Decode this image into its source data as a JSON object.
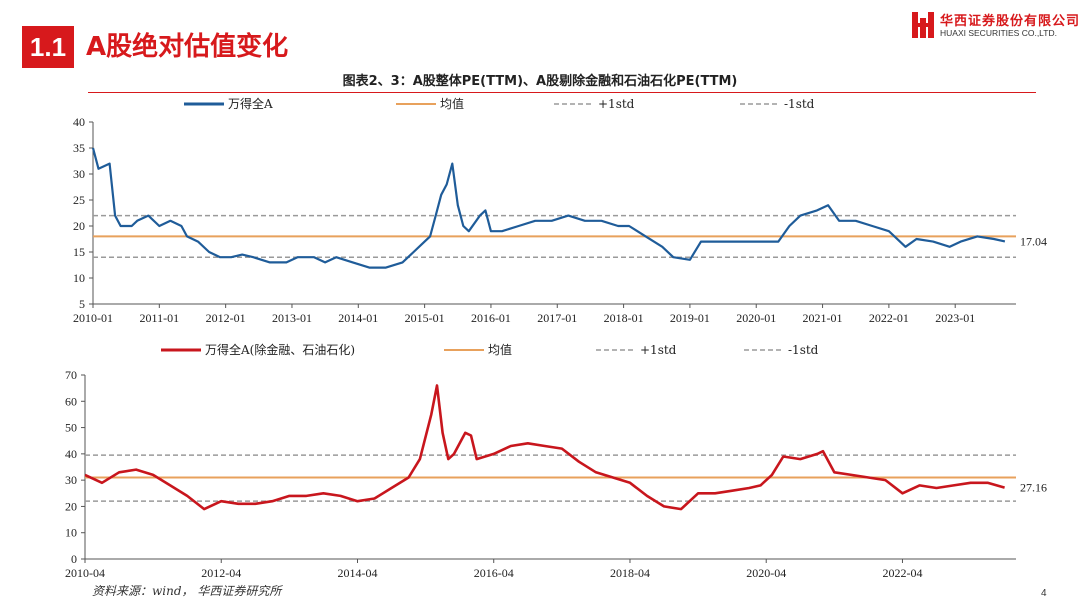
{
  "header": {
    "section_number": "1.1",
    "section_title": "A股绝对估值变化",
    "logo_cn": "华西证券股份有限公司",
    "logo_en": "HUAXI SECURITIES CO.,LTD."
  },
  "figure_title": "图表2、3：A股整体PE(TTM)、A股剔除金融和石油石化PE(TTM)",
  "footer": {
    "source": "资料来源：wind， 华西证券研究所",
    "page": "4"
  },
  "colors": {
    "brand_red": "#d7191c",
    "series_blue": "#1f5c99",
    "series_red": "#c8161d",
    "mean_orange": "#e8a15c",
    "std_gray": "#9a9a9a"
  },
  "chart_data": [
    {
      "type": "line",
      "ylim": [
        5,
        40
      ],
      "yticks": [
        "5",
        "10",
        "15",
        "20",
        "25",
        "30",
        "35",
        "40"
      ],
      "xlim": [
        "2010-01",
        "2023-12"
      ],
      "xticks": [
        "2010-01",
        "2011-01",
        "2012-01",
        "2013-01",
        "2014-01",
        "2015-01",
        "2016-01",
        "2017-01",
        "2018-01",
        "2019-01",
        "2020-01",
        "2021-01",
        "2022-01",
        "2023-01"
      ],
      "legend": [
        "万得全A",
        "均值",
        "+1std",
        "-1std"
      ],
      "mean": 18.0,
      "plus_std": 22.0,
      "minus_std": 14.0,
      "end_label": "17.04",
      "series": [
        {
          "name": "万得全A",
          "points": [
            [
              "2010-01",
              35
            ],
            [
              "2010-02",
              31
            ],
            [
              "2010-04",
              32
            ],
            [
              "2010-05",
              22
            ],
            [
              "2010-06",
              20
            ],
            [
              "2010-08",
              20
            ],
            [
              "2010-09",
              21
            ],
            [
              "2010-11",
              22
            ],
            [
              "2011-01",
              20
            ],
            [
              "2011-03",
              21
            ],
            [
              "2011-05",
              20
            ],
            [
              "2011-06",
              18
            ],
            [
              "2011-08",
              17
            ],
            [
              "2011-10",
              15
            ],
            [
              "2011-12",
              14
            ],
            [
              "2012-02",
              14
            ],
            [
              "2012-04",
              14.5
            ],
            [
              "2012-06",
              14
            ],
            [
              "2012-09",
              13
            ],
            [
              "2012-12",
              13
            ],
            [
              "2013-02",
              14
            ],
            [
              "2013-05",
              14
            ],
            [
              "2013-07",
              13
            ],
            [
              "2013-09",
              14
            ],
            [
              "2013-12",
              13
            ],
            [
              "2014-03",
              12
            ],
            [
              "2014-06",
              12
            ],
            [
              "2014-09",
              13
            ],
            [
              "2014-11",
              15
            ],
            [
              "2015-01",
              17
            ],
            [
              "2015-02",
              18
            ],
            [
              "2015-03",
              22
            ],
            [
              "2015-04",
              26
            ],
            [
              "2015-05",
              28
            ],
            [
              "2015-06",
              32
            ],
            [
              "2015-07",
              24
            ],
            [
              "2015-08",
              20
            ],
            [
              "2015-09",
              19
            ],
            [
              "2015-11",
              22
            ],
            [
              "2015-12",
              23
            ],
            [
              "2016-01",
              19
            ],
            [
              "2016-03",
              19
            ],
            [
              "2016-06",
              20
            ],
            [
              "2016-09",
              21
            ],
            [
              "2016-12",
              21
            ],
            [
              "2017-03",
              22
            ],
            [
              "2017-06",
              21
            ],
            [
              "2017-09",
              21
            ],
            [
              "2017-12",
              20
            ],
            [
              "2018-02",
              20
            ],
            [
              "2018-05",
              18
            ],
            [
              "2018-08",
              16
            ],
            [
              "2018-10",
              14
            ],
            [
              "2019-01",
              13.5
            ],
            [
              "2019-03",
              17
            ],
            [
              "2019-05",
              17
            ],
            [
              "2019-08",
              17
            ],
            [
              "2019-11",
              17
            ],
            [
              "2020-01",
              17
            ],
            [
              "2020-03",
              17
            ],
            [
              "2020-05",
              17
            ],
            [
              "2020-07",
              20
            ],
            [
              "2020-09",
              22
            ],
            [
              "2020-12",
              23
            ],
            [
              "2021-02",
              24
            ],
            [
              "2021-04",
              21
            ],
            [
              "2021-07",
              21
            ],
            [
              "2021-10",
              20
            ],
            [
              "2022-01",
              19
            ],
            [
              "2022-04",
              16
            ],
            [
              "2022-06",
              17.5
            ],
            [
              "2022-09",
              17
            ],
            [
              "2022-12",
              16
            ],
            [
              "2023-02",
              17
            ],
            [
              "2023-05",
              18
            ],
            [
              "2023-08",
              17.5
            ],
            [
              "2023-10",
              17.04
            ]
          ]
        }
      ]
    },
    {
      "type": "line",
      "ylim": [
        0,
        70
      ],
      "yticks": [
        "0",
        "10",
        "20",
        "30",
        "40",
        "50",
        "60",
        "70"
      ],
      "xlim": [
        "2010-04",
        "2023-12"
      ],
      "xticks": [
        "2010-04",
        "2012-04",
        "2014-04",
        "2016-04",
        "2018-04",
        "2020-04",
        "2022-04"
      ],
      "legend": [
        "万得全A(除金融、石油石化)",
        "均值",
        "+1std",
        "-1std"
      ],
      "mean": 31.0,
      "plus_std": 39.5,
      "minus_std": 22.0,
      "end_label": "27.16",
      "series": [
        {
          "name": "万得全A(除金融、石油石化)",
          "points": [
            [
              "2010-04",
              32
            ],
            [
              "2010-07",
              29
            ],
            [
              "2010-10",
              33
            ],
            [
              "2011-01",
              34
            ],
            [
              "2011-04",
              32
            ],
            [
              "2011-07",
              28
            ],
            [
              "2011-10",
              24
            ],
            [
              "2012-01",
              19
            ],
            [
              "2012-04",
              22
            ],
            [
              "2012-07",
              21
            ],
            [
              "2012-10",
              21
            ],
            [
              "2013-01",
              22
            ],
            [
              "2013-04",
              24
            ],
            [
              "2013-07",
              24
            ],
            [
              "2013-10",
              25
            ],
            [
              "2014-01",
              24
            ],
            [
              "2014-04",
              22
            ],
            [
              "2014-07",
              23
            ],
            [
              "2014-10",
              27
            ],
            [
              "2015-01",
              31
            ],
            [
              "2015-03",
              38
            ],
            [
              "2015-05",
              55
            ],
            [
              "2015-06",
              66
            ],
            [
              "2015-07",
              48
            ],
            [
              "2015-08",
              38
            ],
            [
              "2015-09",
              40
            ],
            [
              "2015-11",
              48
            ],
            [
              "2015-12",
              47
            ],
            [
              "2016-01",
              38
            ],
            [
              "2016-04",
              40
            ],
            [
              "2016-07",
              43
            ],
            [
              "2016-10",
              44
            ],
            [
              "2017-01",
              43
            ],
            [
              "2017-04",
              42
            ],
            [
              "2017-07",
              37
            ],
            [
              "2017-10",
              33
            ],
            [
              "2018-01",
              31
            ],
            [
              "2018-04",
              29
            ],
            [
              "2018-07",
              24
            ],
            [
              "2018-10",
              20
            ],
            [
              "2019-01",
              19
            ],
            [
              "2019-04",
              25
            ],
            [
              "2019-07",
              25
            ],
            [
              "2019-10",
              26
            ],
            [
              "2020-01",
              27
            ],
            [
              "2020-03",
              28
            ],
            [
              "2020-05",
              32
            ],
            [
              "2020-07",
              39
            ],
            [
              "2020-10",
              38
            ],
            [
              "2021-01",
              40
            ],
            [
              "2021-02",
              41
            ],
            [
              "2021-04",
              33
            ],
            [
              "2021-07",
              32
            ],
            [
              "2021-10",
              31
            ],
            [
              "2022-01",
              30
            ],
            [
              "2022-04",
              25
            ],
            [
              "2022-07",
              28
            ],
            [
              "2022-10",
              27
            ],
            [
              "2023-01",
              28
            ],
            [
              "2023-04",
              29
            ],
            [
              "2023-07",
              29
            ],
            [
              "2023-10",
              27.16
            ]
          ]
        }
      ]
    }
  ]
}
